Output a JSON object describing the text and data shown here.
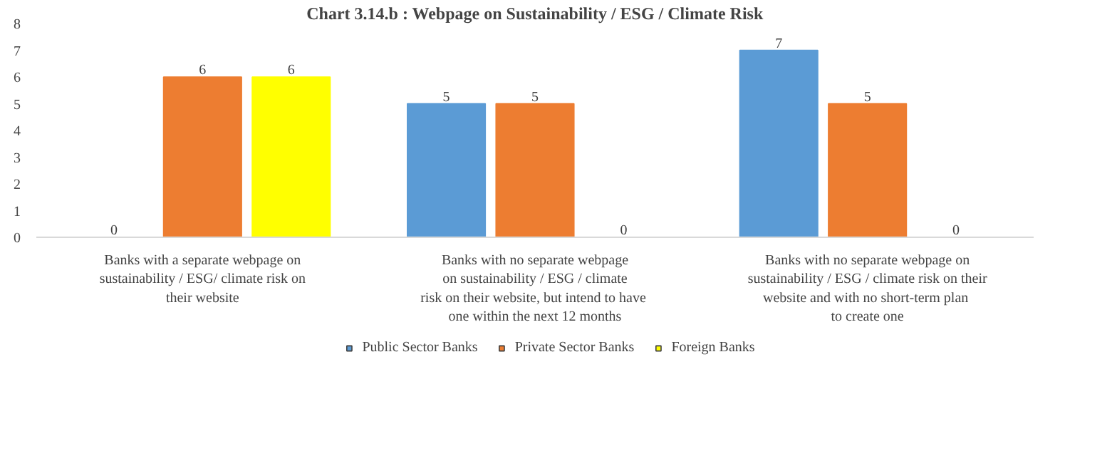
{
  "chart_data": {
    "type": "bar",
    "title": "Chart 3.14.b : Webpage on Sustainability / ESG / Climate Risk",
    "categories": [
      "Banks with a separate webpage on\nsustainability / ESG/ climate risk on\ntheir website",
      "Banks with no separate webpage\non sustainability / ESG / climate\nrisk on their website, but intend to  have\none within the next 12 months",
      "Banks with no separate webpage on\nsustainability / ESG / climate risk on their\nwebsite and with no  short-term plan\nto create one"
    ],
    "series": [
      {
        "name": "Public Sector Banks",
        "color": "#5b9bd5",
        "values": [
          0,
          5,
          7
        ]
      },
      {
        "name": "Private Sector Banks",
        "color": "#ed7d31",
        "values": [
          6,
          5,
          5
        ]
      },
      {
        "name": "Foreign Banks",
        "color": "#ffff00",
        "values": [
          6,
          0,
          0
        ]
      }
    ],
    "ylim": [
      0,
      8
    ],
    "yticks": [
      0,
      1,
      2,
      3,
      4,
      5,
      6,
      7,
      8
    ],
    "grid": false,
    "legend": "bottom",
    "data_labels": true
  }
}
